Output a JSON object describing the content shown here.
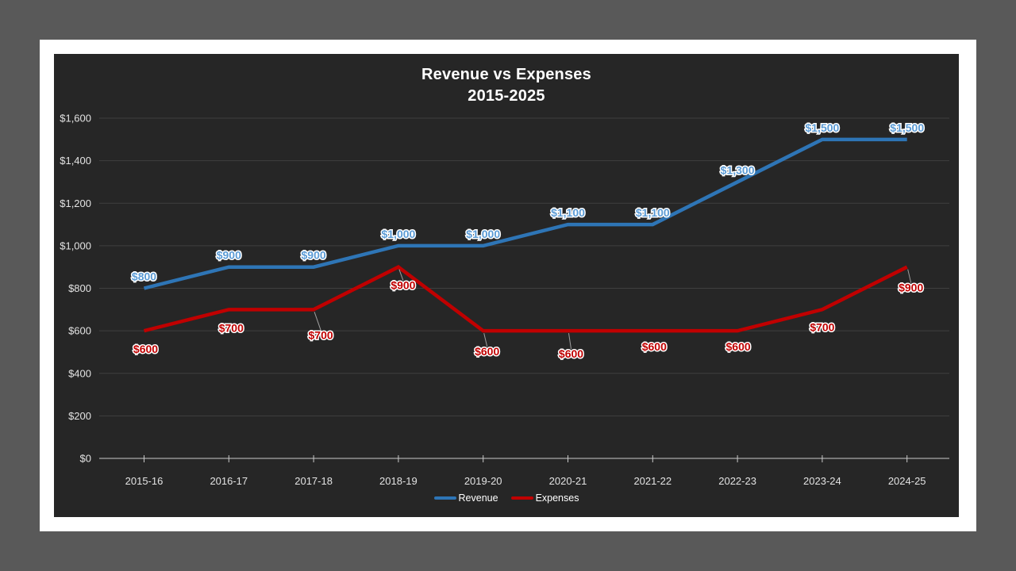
{
  "slide": {
    "background_outer": "#595959",
    "background_slide": "#ffffff",
    "background_chart": "#262626",
    "gridline_color": "#3f3f3f",
    "axis_line_color": "#c9c9c9",
    "axis_text_color": "#e3e3e3",
    "title_text_color": "#ffffff",
    "leader_line_color": "#a0a0a0"
  },
  "chart_data": {
    "type": "line",
    "title": "Revenue vs Expenses",
    "subtitle": "2015-2025",
    "categories": [
      "2015-16",
      "2016-17",
      "2017-18",
      "2018-19",
      "2019-20",
      "2020-21",
      "2021-22",
      "2022-23",
      "2023-24",
      "2024-25"
    ],
    "series": [
      {
        "name": "Revenue",
        "color": "#2e75b6",
        "label_color": "#5b9bd5",
        "values": [
          800,
          900,
          900,
          1000,
          1000,
          1100,
          1100,
          1300,
          1500,
          1500
        ]
      },
      {
        "name": "Expenses",
        "color": "#c00000",
        "label_color": "#c00000",
        "values": [
          600,
          700,
          700,
          900,
          600,
          600,
          600,
          600,
          700,
          900
        ]
      }
    ],
    "y_ticks": [
      0,
      200,
      400,
      600,
      800,
      1000,
      1200,
      1400,
      1600
    ],
    "ylim": [
      0,
      1600
    ],
    "currency_prefix": "$",
    "grid": true,
    "legend_position": "bottom",
    "data_labels": true
  }
}
